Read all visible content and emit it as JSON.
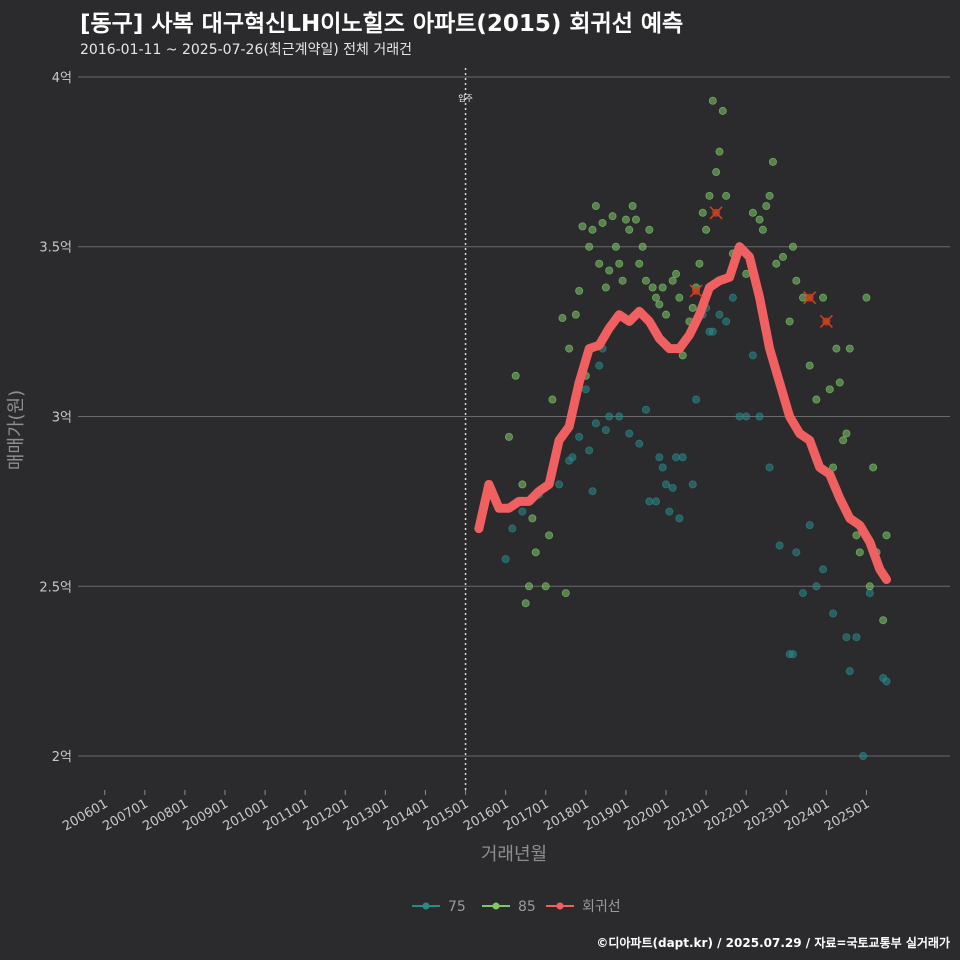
{
  "header": {
    "title": "[동구] 사복 대구혁신LH이노힐즈 아파트(2015) 회귀선 예측",
    "subtitle": "2016-01-11 ~ 2025-07-26(최근계약일) 전체 거래건"
  },
  "footer": {
    "credit": "©디아파트(dapt.kr) / 2025.07.29 / 자료=국토교통부 실거래가"
  },
  "colors": {
    "s75": "#2a8a8a",
    "s85": "#7ec86a",
    "trend": "#f06060",
    "grid": "#6a6a6a",
    "highlight": "#d04020"
  },
  "chart_data": {
    "type": "scatter",
    "xlabel": "거래년월",
    "ylabel": "매매가(원)",
    "x_tick_labels": [
      "200601",
      "200701",
      "200801",
      "200901",
      "201001",
      "201101",
      "201201",
      "201301",
      "201401",
      "201501",
      "201601",
      "201701",
      "201801",
      "201901",
      "202001",
      "202101",
      "202201",
      "202301",
      "202401",
      "202501"
    ],
    "y_ticks": [
      {
        "value": 2.0,
        "label": "2억"
      },
      {
        "value": 2.5,
        "label": "2.5억"
      },
      {
        "value": 3.0,
        "label": "3억"
      },
      {
        "value": 3.5,
        "label": "3.5억"
      },
      {
        "value": 4.0,
        "label": "4억"
      }
    ],
    "xlim": [
      "2005-05",
      "2027-02"
    ],
    "ylim": [
      1.9,
      4.05
    ],
    "y_unit": "억원",
    "annotation": {
      "x": "2015-01",
      "label": "입주"
    },
    "legend": [
      {
        "key": "s75",
        "label": "75"
      },
      {
        "key": "s85",
        "label": "85"
      },
      {
        "key": "trend",
        "label": "회귀선"
      }
    ],
    "series": [
      {
        "name": "75",
        "key": "s75",
        "points": [
          [
            "2016-01",
            2.58
          ],
          [
            "2016-03",
            2.67
          ],
          [
            "2016-06",
            2.72
          ],
          [
            "2016-11",
            2.77
          ],
          [
            "2017-05",
            2.8
          ],
          [
            "2017-08",
            2.87
          ],
          [
            "2017-09",
            2.88
          ],
          [
            "2017-11",
            2.94
          ],
          [
            "2018-01",
            3.08
          ],
          [
            "2018-02",
            2.9
          ],
          [
            "2018-03",
            2.78
          ],
          [
            "2018-04",
            2.98
          ],
          [
            "2018-05",
            3.15
          ],
          [
            "2018-06",
            3.2
          ],
          [
            "2018-07",
            2.96
          ],
          [
            "2018-08",
            3.0
          ],
          [
            "2018-11",
            3.0
          ],
          [
            "2019-02",
            2.95
          ],
          [
            "2019-05",
            2.92
          ],
          [
            "2019-07",
            3.02
          ],
          [
            "2019-08",
            2.75
          ],
          [
            "2019-10",
            2.75
          ],
          [
            "2019-11",
            2.88
          ],
          [
            "2019-12",
            2.85
          ],
          [
            "2020-01",
            2.8
          ],
          [
            "2020-02",
            2.72
          ],
          [
            "2020-03",
            2.79
          ],
          [
            "2020-04",
            2.88
          ],
          [
            "2020-05",
            2.7
          ],
          [
            "2020-06",
            2.88
          ],
          [
            "2020-09",
            2.8
          ],
          [
            "2020-10",
            3.05
          ],
          [
            "2020-12",
            3.3
          ],
          [
            "2021-01",
            3.32
          ],
          [
            "2021-02",
            3.25
          ],
          [
            "2021-03",
            3.25
          ],
          [
            "2021-05",
            3.3
          ],
          [
            "2021-07",
            3.28
          ],
          [
            "2021-09",
            3.35
          ],
          [
            "2021-11",
            3.0
          ],
          [
            "2022-01",
            3.0
          ],
          [
            "2022-03",
            3.18
          ],
          [
            "2022-05",
            3.0
          ],
          [
            "2022-08",
            2.85
          ],
          [
            "2022-11",
            2.62
          ],
          [
            "2023-02",
            2.3
          ],
          [
            "2023-03",
            2.3
          ],
          [
            "2023-04",
            2.6
          ],
          [
            "2023-06",
            2.48
          ],
          [
            "2023-08",
            2.68
          ],
          [
            "2023-10",
            2.5
          ],
          [
            "2023-12",
            2.55
          ],
          [
            "2024-03",
            2.42
          ],
          [
            "2024-07",
            2.35
          ],
          [
            "2024-08",
            2.25
          ],
          [
            "2024-10",
            2.35
          ],
          [
            "2024-12",
            2.0
          ],
          [
            "2025-02",
            2.48
          ],
          [
            "2025-06",
            2.23
          ],
          [
            "2025-07",
            2.22
          ]
        ]
      },
      {
        "name": "85",
        "key": "s85",
        "points": [
          [
            "2016-02",
            2.94
          ],
          [
            "2016-04",
            3.12
          ],
          [
            "2016-06",
            2.8
          ],
          [
            "2016-07",
            2.45
          ],
          [
            "2016-08",
            2.5
          ],
          [
            "2016-09",
            2.7
          ],
          [
            "2016-10",
            2.6
          ],
          [
            "2017-01",
            2.5
          ],
          [
            "2017-02",
            2.65
          ],
          [
            "2017-03",
            3.05
          ],
          [
            "2017-06",
            3.29
          ],
          [
            "2017-07",
            2.48
          ],
          [
            "2017-08",
            3.2
          ],
          [
            "2017-10",
            3.3
          ],
          [
            "2017-11",
            3.37
          ],
          [
            "2017-12",
            3.56
          ],
          [
            "2018-01",
            3.12
          ],
          [
            "2018-02",
            3.5
          ],
          [
            "2018-03",
            3.55
          ],
          [
            "2018-04",
            3.62
          ],
          [
            "2018-05",
            3.45
          ],
          [
            "2018-06",
            3.57
          ],
          [
            "2018-07",
            3.38
          ],
          [
            "2018-08",
            3.43
          ],
          [
            "2018-09",
            3.59
          ],
          [
            "2018-10",
            3.5
          ],
          [
            "2018-11",
            3.45
          ],
          [
            "2018-12",
            3.4
          ],
          [
            "2019-01",
            3.58
          ],
          [
            "2019-02",
            3.55
          ],
          [
            "2019-03",
            3.62
          ],
          [
            "2019-04",
            3.58
          ],
          [
            "2019-05",
            3.45
          ],
          [
            "2019-06",
            3.5
          ],
          [
            "2019-07",
            3.4
          ],
          [
            "2019-08",
            3.55
          ],
          [
            "2019-09",
            3.38
          ],
          [
            "2019-10",
            3.35
          ],
          [
            "2019-11",
            3.33
          ],
          [
            "2019-12",
            3.38
          ],
          [
            "2020-01",
            3.3
          ],
          [
            "2020-02",
            3.2
          ],
          [
            "2020-03",
            3.4
          ],
          [
            "2020-04",
            3.42
          ],
          [
            "2020-05",
            3.35
          ],
          [
            "2020-06",
            3.18
          ],
          [
            "2020-08",
            3.28
          ],
          [
            "2020-09",
            3.32
          ],
          [
            "2020-10",
            3.38
          ],
          [
            "2020-11",
            3.45
          ],
          [
            "2020-12",
            3.6
          ],
          [
            "2021-01",
            3.55
          ],
          [
            "2021-02",
            3.65
          ],
          [
            "2021-03",
            3.93
          ],
          [
            "2021-04",
            3.72
          ],
          [
            "2021-05",
            3.78
          ],
          [
            "2021-06",
            3.9
          ],
          [
            "2021-07",
            3.65
          ],
          [
            "2021-09",
            3.48
          ],
          [
            "2021-10",
            3.48
          ],
          [
            "2022-01",
            3.42
          ],
          [
            "2022-03",
            3.6
          ],
          [
            "2022-05",
            3.58
          ],
          [
            "2022-06",
            3.55
          ],
          [
            "2022-07",
            3.62
          ],
          [
            "2022-08",
            3.65
          ],
          [
            "2022-09",
            3.75
          ],
          [
            "2022-10",
            3.45
          ],
          [
            "2022-12",
            3.47
          ],
          [
            "2023-02",
            3.28
          ],
          [
            "2023-03",
            3.5
          ],
          [
            "2023-04",
            3.4
          ],
          [
            "2023-06",
            3.35
          ],
          [
            "2023-08",
            3.15
          ],
          [
            "2023-10",
            3.05
          ],
          [
            "2023-12",
            3.35
          ],
          [
            "2024-02",
            3.08
          ],
          [
            "2024-03",
            2.85
          ],
          [
            "2024-04",
            3.2
          ],
          [
            "2024-05",
            3.1
          ],
          [
            "2024-06",
            2.93
          ],
          [
            "2024-07",
            2.95
          ],
          [
            "2024-08",
            3.2
          ],
          [
            "2024-10",
            2.65
          ],
          [
            "2024-11",
            2.6
          ],
          [
            "2025-01",
            3.35
          ],
          [
            "2025-02",
            2.5
          ],
          [
            "2025-03",
            2.85
          ],
          [
            "2025-04",
            2.6
          ],
          [
            "2025-06",
            2.4
          ],
          [
            "2025-07",
            2.65
          ]
        ]
      }
    ],
    "highlights": [
      [
        "2020-10",
        3.37
      ],
      [
        "2021-04",
        3.6
      ],
      [
        "2023-08",
        3.35
      ],
      [
        "2024-01",
        3.28
      ]
    ],
    "trend": {
      "name": "회귀선",
      "points": [
        [
          "2015-05",
          2.67
        ],
        [
          "2015-08",
          2.8
        ],
        [
          "2015-11",
          2.73
        ],
        [
          "2016-02",
          2.73
        ],
        [
          "2016-05",
          2.75
        ],
        [
          "2016-08",
          2.75
        ],
        [
          "2016-11",
          2.78
        ],
        [
          "2017-02",
          2.8
        ],
        [
          "2017-05",
          2.93
        ],
        [
          "2017-08",
          2.97
        ],
        [
          "2017-11",
          3.1
        ],
        [
          "2018-02",
          3.2
        ],
        [
          "2018-05",
          3.21
        ],
        [
          "2018-08",
          3.26
        ],
        [
          "2018-11",
          3.3
        ],
        [
          "2019-02",
          3.28
        ],
        [
          "2019-05",
          3.31
        ],
        [
          "2019-08",
          3.28
        ],
        [
          "2019-11",
          3.23
        ],
        [
          "2020-02",
          3.2
        ],
        [
          "2020-05",
          3.2
        ],
        [
          "2020-08",
          3.24
        ],
        [
          "2020-11",
          3.3
        ],
        [
          "2021-02",
          3.38
        ],
        [
          "2021-05",
          3.4
        ],
        [
          "2021-08",
          3.41
        ],
        [
          "2021-11",
          3.5
        ],
        [
          "2022-02",
          3.47
        ],
        [
          "2022-05",
          3.35
        ],
        [
          "2022-08",
          3.2
        ],
        [
          "2022-11",
          3.1
        ],
        [
          "2023-02",
          3.0
        ],
        [
          "2023-05",
          2.95
        ],
        [
          "2023-08",
          2.93
        ],
        [
          "2023-11",
          2.85
        ],
        [
          "2024-02",
          2.83
        ],
        [
          "2024-05",
          2.76
        ],
        [
          "2024-08",
          2.7
        ],
        [
          "2024-11",
          2.68
        ],
        [
          "2025-02",
          2.63
        ],
        [
          "2025-05",
          2.55
        ],
        [
          "2025-07",
          2.52
        ]
      ]
    }
  }
}
